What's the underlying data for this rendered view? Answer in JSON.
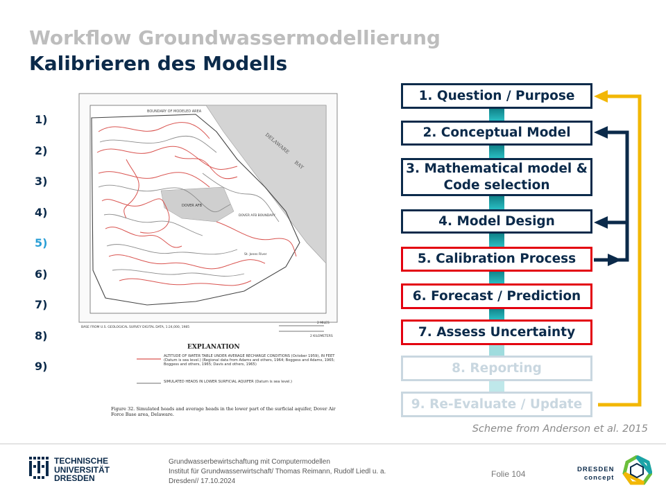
{
  "header": {
    "supertitle": "Workflow Groundwassermodellierung",
    "title": "Kalibrieren des Modells"
  },
  "step_list": [
    "1)",
    "2)",
    "3)",
    "4)",
    "5)",
    "6)",
    "7)",
    "8)",
    "9)"
  ],
  "figure": {
    "heading": "EXPLANATION",
    "base_note": "BASE FROM U.S. GEOLOGICAL SURVEY DIGITAL DATA, 1:24,000, 1985",
    "legend_red": "ALTITUDE OF WATER TABLE UNDER AVERAGE RECHARGE CONDITIONS (October 1959), IN FEET (Datum is sea level.) (Regional data from Adams and others, 1964; Boggess and Adams, 1965; Boggess and others, 1965; Davis and others, 1965)",
    "legend_gray": "SIMULATED HEADS IN LOWER SURFICIAL AQUIFER (Datum is sea level.)",
    "caption": "Figure 32. Simulated heads and average heads in the lower part of the surficial aquifer, Dover Air Force Base area, Delaware.",
    "map_labels": {
      "boundary": "BOUNDARY OF MODELED AREA",
      "delaware": "DELAWARE",
      "bay": "BAY",
      "dover_afb": "DOVER AFB",
      "dover_afb_boundary": "DOVER AFB BOUNDARY",
      "st_jones": "St. Jones River",
      "miles": "2 MILES",
      "km": "2 KILOMETERS"
    }
  },
  "workflow": {
    "steps": [
      {
        "label": "1. Question  / Purpose",
        "state": "normal"
      },
      {
        "label": "2. Conceptual Model",
        "state": "normal"
      },
      {
        "label": "3. Mathematical model & Code selection",
        "state": "normal"
      },
      {
        "label": "4. Model Design",
        "state": "normal"
      },
      {
        "label": "5. Calibration Process",
        "state": "highlight"
      },
      {
        "label": "6. Forecast / Prediction",
        "state": "highlight"
      },
      {
        "label": "7. Assess  Uncertainty",
        "state": "highlight"
      },
      {
        "label": "8. Reporting",
        "state": "faded"
      },
      {
        "label": "9. Re-Evaluate / Update",
        "state": "faded"
      }
    ],
    "caption": "Scheme from Anderson et al. 2015",
    "colors": {
      "navy": "#0b2a4a",
      "red": "#e3000f",
      "faded": "#c9d7e0",
      "teal": "#1aa3a8",
      "yellow": "#f2b705"
    }
  },
  "footer": {
    "tud": {
      "line1": "TECHNISCHE",
      "line2": "UNIVERSITÄT",
      "line3": "DRESDEN"
    },
    "info_line1": "Grundwasserbewirtschaftung mit Computermodellen",
    "info_line2": "Institut für Grundwasserwirtschaft/ Thomas Reimann, Rudolf Liedl u. a.",
    "info_line3": "Dresden// 17.10.2024",
    "folie": "Folie 104",
    "dc": {
      "line1": "DRESDEN",
      "line2": "concept"
    }
  }
}
